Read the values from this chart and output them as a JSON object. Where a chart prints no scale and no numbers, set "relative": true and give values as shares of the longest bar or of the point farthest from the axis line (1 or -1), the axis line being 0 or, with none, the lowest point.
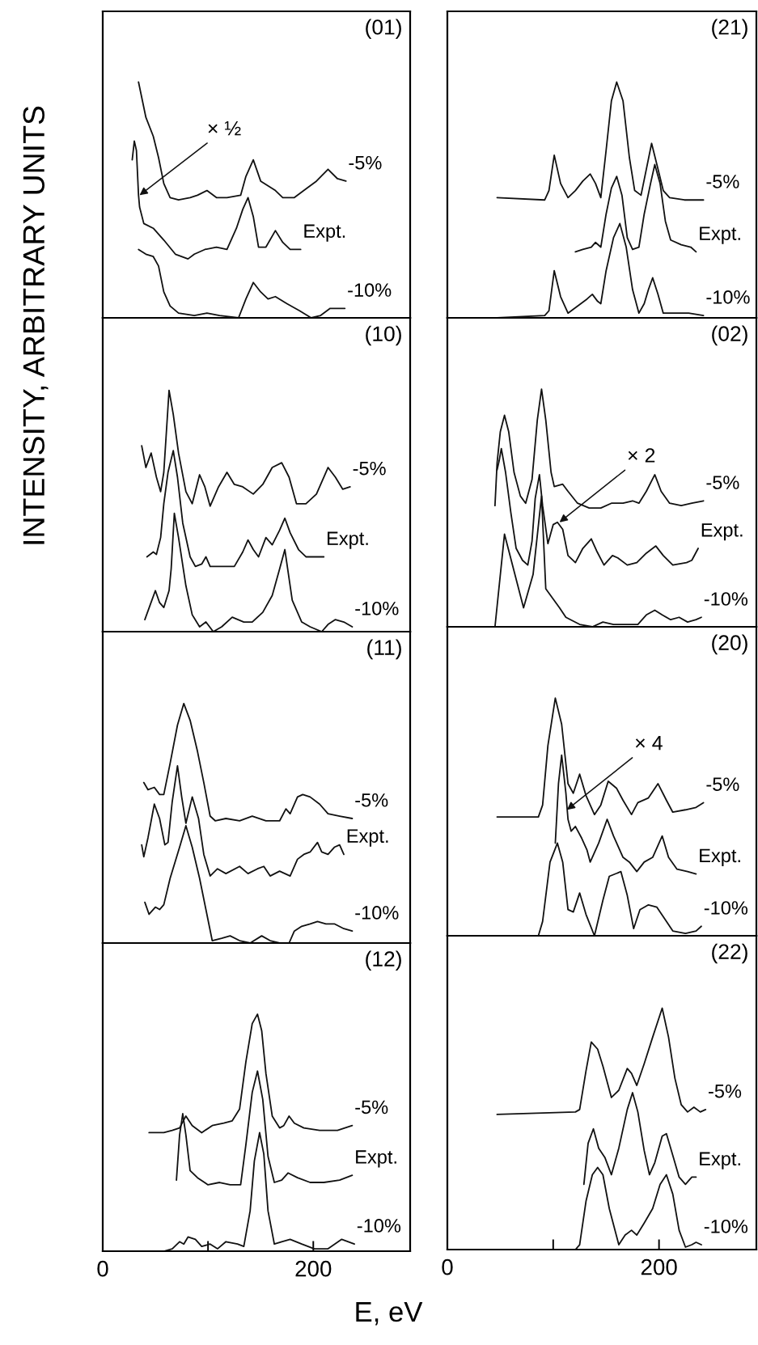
{
  "chart_data": [
    {
      "type": "line",
      "title": "(01)",
      "ylabel": "INTENSITY, ARBITRARY UNITS",
      "relative": true,
      "xlim": [
        0,
        292
      ],
      "tick_labels": false,
      "annotations": [
        {
          "text": "× ½",
          "x": 35,
          "y": 0.52
        }
      ],
      "series": [
        {
          "name": "-5%",
          "color": "#111111",
          "x": [
            34,
            41,
            48,
            53,
            58,
            64,
            72,
            83,
            90,
            99,
            108,
            118,
            131,
            136,
            143,
            150,
            157,
            164,
            171,
            182,
            191,
            203,
            214,
            223,
            231
          ],
          "values": [
            1.0,
            0.85,
            0.77,
            0.68,
            0.57,
            0.51,
            0.5,
            0.51,
            0.52,
            0.54,
            0.51,
            0.51,
            0.52,
            0.6,
            0.67,
            0.58,
            0.56,
            0.54,
            0.51,
            0.51,
            0.54,
            0.58,
            0.63,
            0.59,
            0.58
          ]
        },
        {
          "name": "Expt.",
          "color": "#111111",
          "x": [
            28,
            30,
            32,
            34,
            35,
            39,
            48,
            58,
            69,
            81,
            87,
            97,
            108,
            118,
            127,
            133,
            138,
            143,
            148,
            155,
            164,
            171,
            178,
            188
          ],
          "values": [
            0.67,
            0.75,
            0.71,
            0.52,
            0.47,
            0.4,
            0.38,
            0.33,
            0.27,
            0.25,
            0.27,
            0.29,
            0.3,
            0.29,
            0.38,
            0.46,
            0.51,
            0.43,
            0.3,
            0.3,
            0.37,
            0.32,
            0.29,
            0.29
          ]
        },
        {
          "name": "-10%",
          "color": "#111111",
          "x": [
            34,
            41,
            48,
            53,
            58,
            64,
            72,
            87,
            99,
            111,
            129,
            136,
            143,
            150,
            157,
            164,
            175,
            187,
            198,
            207,
            216,
            230
          ],
          "values": [
            0.29,
            0.27,
            0.26,
            0.22,
            0.11,
            0.05,
            0.02,
            0.01,
            0.02,
            0.01,
            0.0,
            0.08,
            0.15,
            0.11,
            0.08,
            0.09,
            0.06,
            0.03,
            0.0,
            0.01,
            0.04,
            0.04
          ]
        }
      ]
    },
    {
      "type": "line",
      "title": "(10)",
      "relative": true,
      "xlim": [
        0,
        292
      ],
      "tick_labels": false,
      "series": [
        {
          "name": "-5%",
          "color": "#111111",
          "x": [
            37,
            41,
            46,
            51,
            55,
            58,
            63,
            67,
            72,
            79,
            85,
            92,
            97,
            102,
            110,
            118,
            125,
            133,
            143,
            152,
            161,
            170,
            177,
            184,
            193,
            203,
            214,
            221,
            228,
            235
          ],
          "values": [
            0.77,
            0.68,
            0.74,
            0.64,
            0.58,
            0.66,
            1.0,
            0.9,
            0.74,
            0.58,
            0.53,
            0.65,
            0.6,
            0.52,
            0.6,
            0.66,
            0.61,
            0.6,
            0.57,
            0.61,
            0.68,
            0.7,
            0.64,
            0.53,
            0.53,
            0.57,
            0.68,
            0.64,
            0.59,
            0.6
          ]
        },
        {
          "name": "Expt.",
          "color": "#111111",
          "x": [
            42,
            48,
            51,
            55,
            58,
            62,
            67,
            71,
            76,
            83,
            88,
            94,
            98,
            102,
            111,
            118,
            125,
            133,
            138,
            143,
            148,
            155,
            161,
            168,
            173,
            178,
            186,
            193,
            201,
            210
          ],
          "values": [
            0.31,
            0.33,
            0.32,
            0.39,
            0.53,
            0.66,
            0.75,
            0.64,
            0.45,
            0.31,
            0.27,
            0.28,
            0.31,
            0.27,
            0.27,
            0.27,
            0.27,
            0.33,
            0.38,
            0.34,
            0.31,
            0.39,
            0.36,
            0.42,
            0.47,
            0.41,
            0.34,
            0.31,
            0.31,
            0.31
          ]
        },
        {
          "name": "-10%",
          "color": "#111111",
          "x": [
            40,
            45,
            50,
            54,
            58,
            63,
            65,
            68,
            72,
            79,
            85,
            92,
            98,
            105,
            113,
            123,
            134,
            142,
            152,
            161,
            168,
            173,
            180,
            189,
            197,
            208,
            214,
            221,
            229,
            237
          ],
          "values": [
            0.05,
            0.11,
            0.17,
            0.12,
            0.1,
            0.17,
            0.26,
            0.49,
            0.39,
            0.19,
            0.07,
            0.02,
            0.04,
            0.0,
            0.02,
            0.06,
            0.04,
            0.04,
            0.08,
            0.15,
            0.26,
            0.34,
            0.13,
            0.04,
            0.02,
            0.0,
            0.03,
            0.05,
            0.04,
            0.02
          ]
        }
      ]
    },
    {
      "type": "line",
      "title": "(11)",
      "relative": true,
      "xlim": [
        0,
        292
      ],
      "tick_labels": false,
      "series": [
        {
          "name": "-5%",
          "color": "#111111",
          "x": [
            39,
            43,
            49,
            54,
            58,
            64,
            71,
            77,
            83,
            90,
            96,
            102,
            107,
            117,
            130,
            142,
            155,
            168,
            174,
            178,
            185,
            190,
            197,
            206,
            214,
            225,
            237
          ],
          "values": [
            0.67,
            0.64,
            0.65,
            0.62,
            0.62,
            0.75,
            0.91,
            1.0,
            0.93,
            0.8,
            0.67,
            0.53,
            0.51,
            0.52,
            0.51,
            0.53,
            0.51,
            0.51,
            0.56,
            0.54,
            0.61,
            0.62,
            0.61,
            0.58,
            0.54,
            0.53,
            0.52
          ]
        },
        {
          "name": "Expt.",
          "color": "#111111",
          "x": [
            37,
            39,
            43,
            49,
            54,
            59,
            62,
            66,
            71,
            75,
            79,
            85,
            91,
            96,
            102,
            109,
            117,
            130,
            138,
            147,
            153,
            159,
            168,
            178,
            185,
            191,
            197,
            204,
            208,
            214,
            220,
            225,
            229
          ],
          "values": [
            0.41,
            0.36,
            0.44,
            0.58,
            0.52,
            0.41,
            0.42,
            0.59,
            0.74,
            0.61,
            0.5,
            0.61,
            0.52,
            0.37,
            0.28,
            0.31,
            0.29,
            0.32,
            0.29,
            0.31,
            0.32,
            0.28,
            0.3,
            0.28,
            0.35,
            0.37,
            0.38,
            0.42,
            0.38,
            0.37,
            0.4,
            0.41,
            0.37
          ]
        },
        {
          "name": "-10%",
          "color": "#111111",
          "x": [
            40,
            44,
            50,
            54,
            58,
            64,
            73,
            79,
            85,
            92,
            98,
            104,
            113,
            121,
            130,
            140,
            151,
            159,
            168,
            177,
            182,
            189,
            197,
            204,
            212,
            220,
            229,
            237
          ],
          "values": [
            0.17,
            0.12,
            0.15,
            0.14,
            0.16,
            0.27,
            0.4,
            0.49,
            0.4,
            0.27,
            0.14,
            0.01,
            0.02,
            0.03,
            0.01,
            0.0,
            0.03,
            0.01,
            0.0,
            0.0,
            0.05,
            0.07,
            0.08,
            0.09,
            0.08,
            0.08,
            0.06,
            0.05
          ]
        }
      ]
    },
    {
      "type": "line",
      "title": "(12)",
      "xlabel": "E, eV",
      "relative": true,
      "xlim": [
        0,
        292
      ],
      "xticks": [
        0,
        {
          "value": 100,
          "label": null
        },
        200
      ],
      "tick_labels": "x",
      "series": [
        {
          "name": "-5%",
          "color": "#111111",
          "x": [
            44,
            58,
            66,
            73,
            79,
            85,
            94,
            104,
            115,
            123,
            130,
            136,
            142,
            147,
            151,
            155,
            161,
            168,
            172,
            177,
            182,
            191,
            206,
            223,
            237
          ],
          "values": [
            0.5,
            0.5,
            0.51,
            0.52,
            0.57,
            0.53,
            0.5,
            0.53,
            0.54,
            0.55,
            0.6,
            0.8,
            0.96,
            1.0,
            0.93,
            0.75,
            0.57,
            0.52,
            0.53,
            0.57,
            0.54,
            0.52,
            0.51,
            0.51,
            0.53
          ]
        },
        {
          "name": "Expt.",
          "color": "#111111",
          "x": [
            70,
            73,
            76,
            79,
            83,
            90,
            100,
            111,
            121,
            131,
            136,
            142,
            147,
            152,
            157,
            163,
            170,
            176,
            185,
            197,
            210,
            225,
            237
          ],
          "values": [
            0.3,
            0.49,
            0.58,
            0.49,
            0.34,
            0.31,
            0.28,
            0.29,
            0.28,
            0.28,
            0.45,
            0.67,
            0.76,
            0.64,
            0.4,
            0.29,
            0.3,
            0.33,
            0.31,
            0.29,
            0.29,
            0.3,
            0.32
          ]
        },
        {
          "name": "-10%",
          "color": "#111111",
          "x": [
            45,
            58,
            66,
            73,
            77,
            81,
            88,
            94,
            102,
            109,
            117,
            128,
            134,
            140,
            144,
            149,
            153,
            157,
            163,
            170,
            178,
            189,
            201,
            214,
            227,
            239
          ],
          "values": [
            0.0,
            0.0,
            0.01,
            0.04,
            0.03,
            0.06,
            0.05,
            0.02,
            0.03,
            0.01,
            0.04,
            0.03,
            0.02,
            0.17,
            0.38,
            0.5,
            0.41,
            0.17,
            0.03,
            0.04,
            0.05,
            0.03,
            0.01,
            0.01,
            0.05,
            0.03
          ]
        }
      ]
    },
    {
      "type": "line",
      "title": "(21)",
      "relative": true,
      "xlim": [
        0,
        292
      ],
      "tick_labels": false,
      "series": [
        {
          "name": "-5%",
          "color": "#111111",
          "x": [
            47,
            92,
            96,
            101,
            107,
            114,
            121,
            128,
            135,
            140,
            145,
            150,
            155,
            160,
            166,
            172,
            177,
            183,
            188,
            193,
            198,
            204,
            210,
            224,
            242
          ],
          "values": [
            0.51,
            0.5,
            0.54,
            0.69,
            0.57,
            0.51,
            0.54,
            0.58,
            0.61,
            0.57,
            0.51,
            0.71,
            0.92,
            1.0,
            0.92,
            0.68,
            0.54,
            0.52,
            0.63,
            0.74,
            0.65,
            0.54,
            0.51,
            0.5,
            0.5
          ]
        },
        {
          "name": "Expt.",
          "color": "#111111",
          "x": [
            121,
            128,
            136,
            140,
            145,
            150,
            155,
            160,
            165,
            170,
            175,
            181,
            186,
            192,
            196,
            201,
            206,
            211,
            221,
            230,
            235
          ],
          "values": [
            0.28,
            0.29,
            0.3,
            0.32,
            0.3,
            0.44,
            0.55,
            0.6,
            0.52,
            0.34,
            0.29,
            0.3,
            0.44,
            0.57,
            0.65,
            0.57,
            0.41,
            0.33,
            0.31,
            0.3,
            0.28
          ]
        },
        {
          "name": "-10%",
          "color": "#111111",
          "x": [
            47,
            92,
            96,
            101,
            107,
            114,
            123,
            132,
            137,
            142,
            145,
            150,
            157,
            163,
            169,
            175,
            181,
            186,
            190,
            194,
            199,
            204,
            213,
            228,
            242
          ],
          "values": [
            0.0,
            0.01,
            0.03,
            0.2,
            0.09,
            0.02,
            0.05,
            0.08,
            0.1,
            0.07,
            0.06,
            0.2,
            0.34,
            0.4,
            0.3,
            0.12,
            0.02,
            0.06,
            0.12,
            0.17,
            0.1,
            0.02,
            0.02,
            0.02,
            0.01
          ]
        }
      ]
    },
    {
      "type": "line",
      "title": "(02)",
      "relative": true,
      "xlim": [
        0,
        292
      ],
      "tick_labels": false,
      "annotations": [
        {
          "text": "× 2",
          "x": 106,
          "y": 0.44
        }
      ],
      "series": [
        {
          "name": "-5%",
          "color": "#111111",
          "x": [
            45,
            47,
            50,
            54,
            58,
            63,
            69,
            74,
            80,
            85,
            89,
            93,
            98,
            101,
            109,
            114,
            123,
            134,
            145,
            155,
            166,
            175,
            181,
            188,
            196,
            202,
            210,
            221,
            231,
            242
          ],
          "values": [
            0.51,
            0.69,
            0.82,
            0.89,
            0.82,
            0.65,
            0.55,
            0.52,
            0.62,
            0.87,
            1.0,
            0.87,
            0.65,
            0.59,
            0.6,
            0.57,
            0.52,
            0.5,
            0.5,
            0.52,
            0.52,
            0.53,
            0.52,
            0.57,
            0.64,
            0.57,
            0.52,
            0.51,
            0.52,
            0.53
          ]
        },
        {
          "name": "Expt.",
          "color": "#111111",
          "x": [
            47,
            49,
            51,
            55,
            60,
            65,
            71,
            76,
            80,
            83,
            87,
            90,
            95,
            100,
            104,
            109,
            114,
            121,
            128,
            136,
            141,
            148,
            156,
            161,
            170,
            179,
            188,
            197,
            204,
            213,
            226,
            231,
            237
          ],
          "values": [
            0.66,
            0.7,
            0.75,
            0.65,
            0.48,
            0.33,
            0.28,
            0.26,
            0.36,
            0.54,
            0.64,
            0.51,
            0.35,
            0.43,
            0.44,
            0.41,
            0.3,
            0.27,
            0.33,
            0.37,
            0.32,
            0.26,
            0.3,
            0.29,
            0.26,
            0.27,
            0.31,
            0.34,
            0.3,
            0.26,
            0.27,
            0.28,
            0.33
          ]
        },
        {
          "name": "-10%",
          "color": "#111111",
          "x": [
            45,
            54,
            72,
            81,
            89,
            93,
            106,
            112,
            125,
            137,
            147,
            157,
            170,
            180,
            188,
            196,
            203,
            211,
            219,
            227,
            235,
            240
          ],
          "values": [
            0.0,
            0.39,
            0.08,
            0.22,
            0.55,
            0.16,
            0.08,
            0.04,
            0.01,
            0.0,
            0.02,
            0.01,
            0.01,
            0.01,
            0.05,
            0.07,
            0.05,
            0.03,
            0.04,
            0.02,
            0.03,
            0.04
          ]
        }
      ]
    },
    {
      "type": "line",
      "title": "(20)",
      "relative": true,
      "xlim": [
        0,
        292
      ],
      "tick_labels": false,
      "annotations": [
        {
          "text": "× 4",
          "x": 113,
          "y": 0.53
        }
      ],
      "series": [
        {
          "name": "-5%",
          "color": "#111111",
          "x": [
            47,
            86,
            90,
            95,
            102,
            108,
            114,
            119,
            125,
            131,
            139,
            145,
            152,
            160,
            166,
            174,
            180,
            190,
            199,
            207,
            213,
            225,
            235,
            242
          ],
          "values": [
            0.5,
            0.5,
            0.55,
            0.8,
            1.0,
            0.89,
            0.64,
            0.6,
            0.68,
            0.59,
            0.51,
            0.55,
            0.65,
            0.62,
            0.57,
            0.51,
            0.56,
            0.58,
            0.64,
            0.57,
            0.52,
            0.53,
            0.54,
            0.56
          ]
        },
        {
          "name": "Expt.",
          "color": "#111111",
          "x": [
            102,
            105,
            108,
            112,
            114,
            117,
            121,
            127,
            132,
            135,
            143,
            151,
            157,
            166,
            172,
            179,
            186,
            194,
            203,
            209,
            217,
            227,
            235
          ],
          "values": [
            0.39,
            0.64,
            0.76,
            0.6,
            0.49,
            0.44,
            0.46,
            0.41,
            0.36,
            0.31,
            0.39,
            0.49,
            0.42,
            0.33,
            0.31,
            0.27,
            0.31,
            0.33,
            0.42,
            0.33,
            0.28,
            0.27,
            0.26
          ]
        },
        {
          "name": "-10%",
          "color": "#111111",
          "x": [
            47,
            86,
            90,
            97,
            104,
            109,
            114,
            119,
            125,
            131,
            139,
            147,
            153,
            164,
            170,
            176,
            182,
            190,
            198,
            207,
            213,
            225,
            235,
            240
          ],
          "values": [
            0.0,
            0.0,
            0.06,
            0.31,
            0.39,
            0.31,
            0.11,
            0.1,
            0.18,
            0.09,
            0.0,
            0.15,
            0.25,
            0.27,
            0.17,
            0.03,
            0.11,
            0.13,
            0.12,
            0.06,
            0.02,
            0.01,
            0.02,
            0.04
          ]
        }
      ]
    },
    {
      "type": "line",
      "title": "(22)",
      "relative": true,
      "xlim": [
        0,
        292
      ],
      "xticks": [
        0,
        {
          "value": 100,
          "label": null
        },
        200
      ],
      "tick_labels": "x",
      "series": [
        {
          "name": "-5%",
          "color": "#111111",
          "x": [
            47,
            121,
            125,
            131,
            136,
            142,
            147,
            155,
            162,
            170,
            174,
            179,
            186,
            194,
            203,
            209,
            215,
            221,
            227,
            233,
            239,
            244
          ],
          "values": [
            0.56,
            0.57,
            0.58,
            0.74,
            0.86,
            0.83,
            0.76,
            0.63,
            0.66,
            0.75,
            0.73,
            0.68,
            0.77,
            0.88,
            1.0,
            0.88,
            0.71,
            0.6,
            0.57,
            0.59,
            0.57,
            0.58
          ]
        },
        {
          "name": "Expt.",
          "color": "#111111",
          "x": [
            129,
            133,
            138,
            143,
            149,
            155,
            162,
            170,
            175,
            180,
            186,
            191,
            196,
            203,
            207,
            213,
            219,
            225,
            231,
            235
          ],
          "values": [
            0.27,
            0.44,
            0.5,
            0.42,
            0.38,
            0.31,
            0.42,
            0.58,
            0.65,
            0.57,
            0.41,
            0.31,
            0.36,
            0.47,
            0.48,
            0.39,
            0.3,
            0.27,
            0.3,
            0.3
          ]
        },
        {
          "name": "-10%",
          "color": "#111111",
          "x": [
            47,
            121,
            125,
            131,
            137,
            142,
            147,
            153,
            162,
            168,
            174,
            179,
            186,
            194,
            201,
            207,
            213,
            219,
            225,
            231,
            235,
            240
          ],
          "values": [
            0.0,
            0.0,
            0.02,
            0.2,
            0.31,
            0.34,
            0.31,
            0.17,
            0.02,
            0.06,
            0.08,
            0.06,
            0.11,
            0.17,
            0.27,
            0.31,
            0.23,
            0.08,
            0.01,
            0.02,
            0.03,
            0.02
          ]
        }
      ]
    }
  ]
}
